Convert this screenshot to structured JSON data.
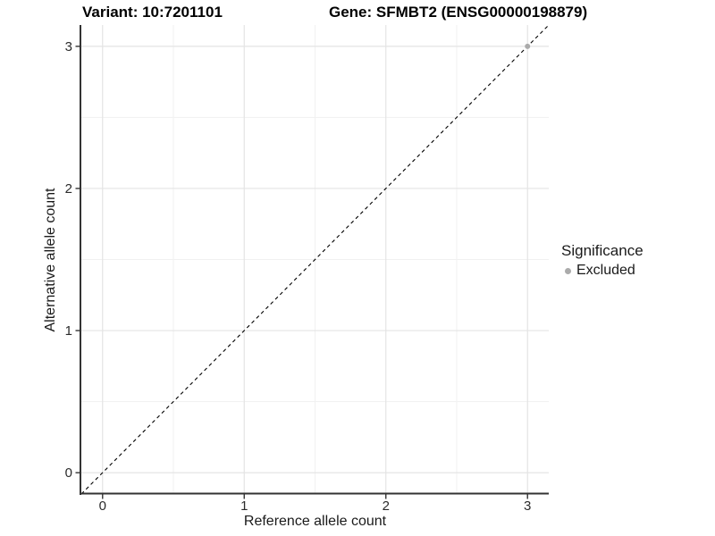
{
  "header": {
    "variant_title": "Variant: 10:7201101",
    "gene_title": "Gene: SFMBT2 (ENSG00000198879)"
  },
  "legend": {
    "title": "Significance",
    "items": [
      {
        "label": "Excluded",
        "color": "#ababab"
      }
    ]
  },
  "chart_data": {
    "type": "scatter",
    "titles": [
      "Variant: 10:7201101",
      "Gene: SFMBT2 (ENSG00000198879)"
    ],
    "xlabel": "Reference allele count",
    "ylabel": "Alternative allele count",
    "xlim": [
      -0.15,
      3.15
    ],
    "ylim": [
      -0.15,
      3.15
    ],
    "xticks": [
      0,
      1,
      2,
      3
    ],
    "yticks": [
      0,
      1,
      2,
      3
    ],
    "minor_gridlines_x": [
      0.5,
      1.5,
      2.5
    ],
    "minor_gridlines_y": [
      0.5,
      1.5,
      2.5
    ],
    "grid": "on",
    "legend_position": "right",
    "series": [
      {
        "name": "Excluded",
        "color": "#ababab",
        "points": [
          [
            3,
            3
          ]
        ]
      }
    ],
    "reference_line": {
      "kind": "identity y=x",
      "style": "dashed",
      "color": "#000000",
      "x1": -0.15,
      "y1": -0.15,
      "x2": 3.15,
      "y2": 3.15
    }
  },
  "colors": {
    "background": "#ffffff",
    "grid_major": "#e4e4e4",
    "grid_minor": "#f1f1f1",
    "axis_line": "#333333",
    "tick_text": "#2b2b2b",
    "excluded_point": "#ababab"
  }
}
